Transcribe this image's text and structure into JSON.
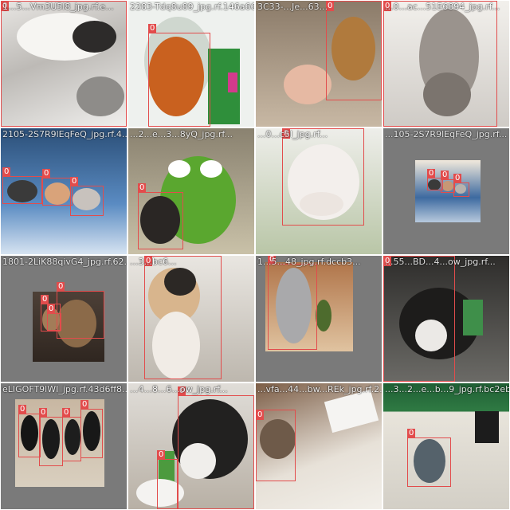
{
  "tiles": [
    {
      "filename": "1...5...Vm3U5l8_jpg.rf.e...",
      "box_label": "0"
    },
    {
      "filename": "2283-Tdq8u89_jpg.rf.146a66bc...",
      "box_label": "0"
    },
    {
      "filename": "3C33-...Je...63...",
      "box_label": "0"
    },
    {
      "filename": "...0...ac...51E6894_jpg.rf...",
      "box_label": "0"
    },
    {
      "filename": "2105-2S7R9lEqFeQ_jpg.rf.4...",
      "box_label": "0"
    },
    {
      "filename": "...2...e...3...8yQ_jpg.rf...",
      "box_label": "0"
    },
    {
      "filename": "...0...c5l_jpg.rf...",
      "box_label": "0"
    },
    {
      "filename": "...105-2S7R9lEqFeQ_jpg.rf...",
      "box_label": "0"
    },
    {
      "filename": "1801-2LiK88qivG4_jpg.rf.62...",
      "box_label": "0"
    },
    {
      "filename": "...3...bc6...",
      "box_label": "0"
    },
    {
      "filename": "1...5...48_jpg.rf.dccb3...",
      "box_label": "0"
    },
    {
      "filename": "...55...BD...4...ow_jpg.rf...",
      "box_label": "0"
    },
    {
      "filename": "eLIGOFT9lWI_jpg.rf.43d6ff8...",
      "box_label": "0"
    },
    {
      "filename": "...4...8...6...ow_jpg.rf...",
      "box_label": "0"
    },
    {
      "filename": "...vfa...44...bw...REk_jpg.rf.2...",
      "box_label": "0"
    },
    {
      "filename": "...3...2...e...b...9_jpg.rf.bc2eb...",
      "box_label": "0"
    }
  ]
}
